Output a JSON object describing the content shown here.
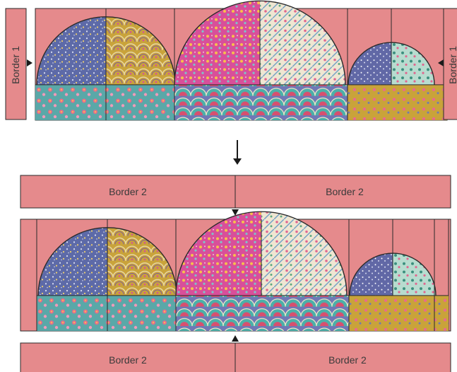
{
  "colors": {
    "border_fill": "#e58a8c",
    "outline": "#2a2a2a",
    "navy": "#5d6aa8",
    "mustard": "#c9a33a",
    "magenta": "#d84f9a",
    "teal": "#5aa8a8",
    "cream": "#efe6d2",
    "slate": "#6f78b5"
  },
  "step1": {
    "left_border_label": "Border 1",
    "right_border_label": "Border 1"
  },
  "step2": {
    "top_borders": [
      "Border 2",
      "Border 2"
    ],
    "bottom_borders": [
      "Border 2",
      "Border 2"
    ]
  },
  "icons": {
    "flow_arrow": "arrow-down-icon",
    "pointer_arrows": "triangle-pointer-icon"
  }
}
